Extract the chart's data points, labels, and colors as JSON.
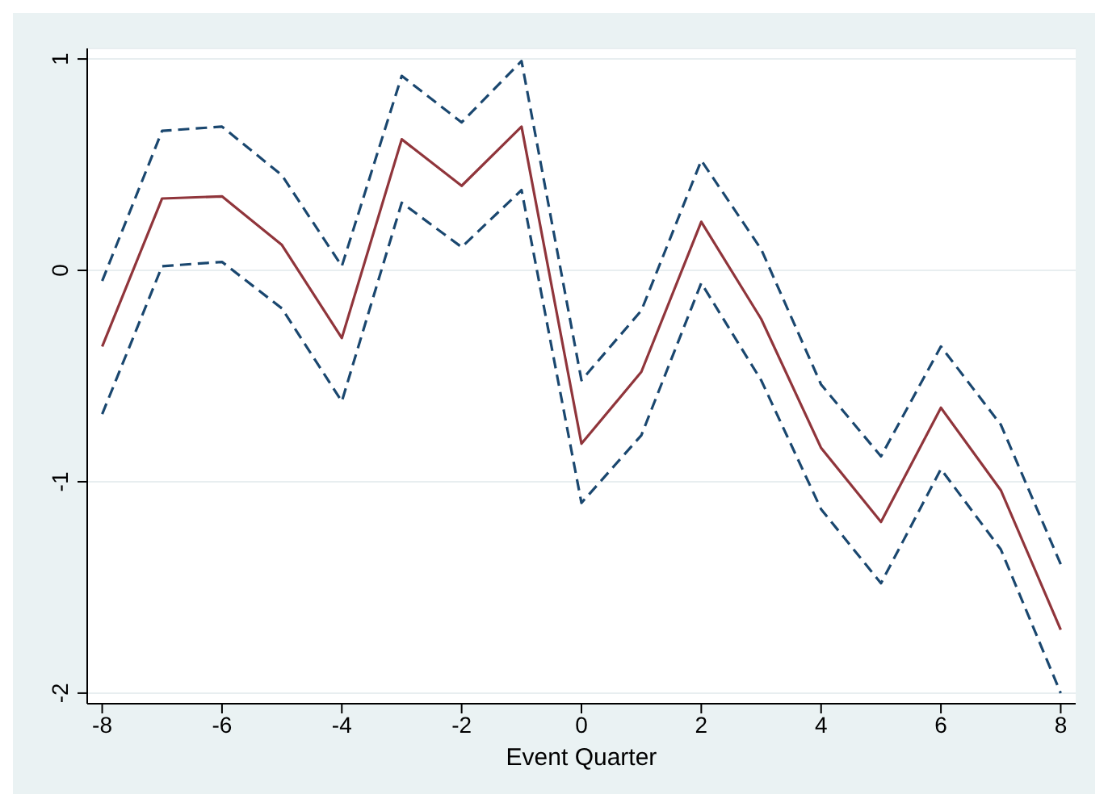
{
  "chart_data": {
    "type": "line",
    "xlabel": "Event Quarter",
    "x": [
      -8,
      -7,
      -6,
      -5,
      -4,
      -3,
      -2,
      -1,
      0,
      1,
      2,
      3,
      4,
      5,
      6,
      7,
      8
    ],
    "series": [
      {
        "color": "#1a476f",
        "line_style": "dashed",
        "values": [
          -0.05,
          0.66,
          0.68,
          0.45,
          0.02,
          0.92,
          0.7,
          0.99,
          -0.52,
          -0.19,
          0.52,
          0.1,
          -0.54,
          -0.88,
          -0.36,
          -0.73,
          -1.39
        ]
      },
      {
        "color": "#90353b",
        "line_style": "solid",
        "values": [
          -0.36,
          0.34,
          0.35,
          0.12,
          -0.32,
          0.62,
          0.4,
          0.68,
          -0.82,
          -0.48,
          0.23,
          -0.23,
          -0.84,
          -1.19,
          -0.65,
          -1.04,
          -1.7
        ]
      },
      {
        "color": "#1a476f",
        "line_style": "dashed",
        "values": [
          -0.68,
          0.02,
          0.04,
          -0.18,
          -0.62,
          0.32,
          0.11,
          0.38,
          -1.1,
          -0.78,
          -0.06,
          -0.52,
          -1.13,
          -1.48,
          -0.94,
          -1.32,
          -2.0
        ]
      }
    ],
    "xlim": [
      -8.25,
      8.25
    ],
    "xticks": [
      -8,
      -6,
      -4,
      -2,
      0,
      2,
      4,
      6,
      8
    ],
    "ylim": [
      -2.05,
      1.05
    ],
    "yticks": [
      -2,
      -1,
      0,
      1
    ],
    "grid": "y",
    "legend": false,
    "marker": "none"
  }
}
